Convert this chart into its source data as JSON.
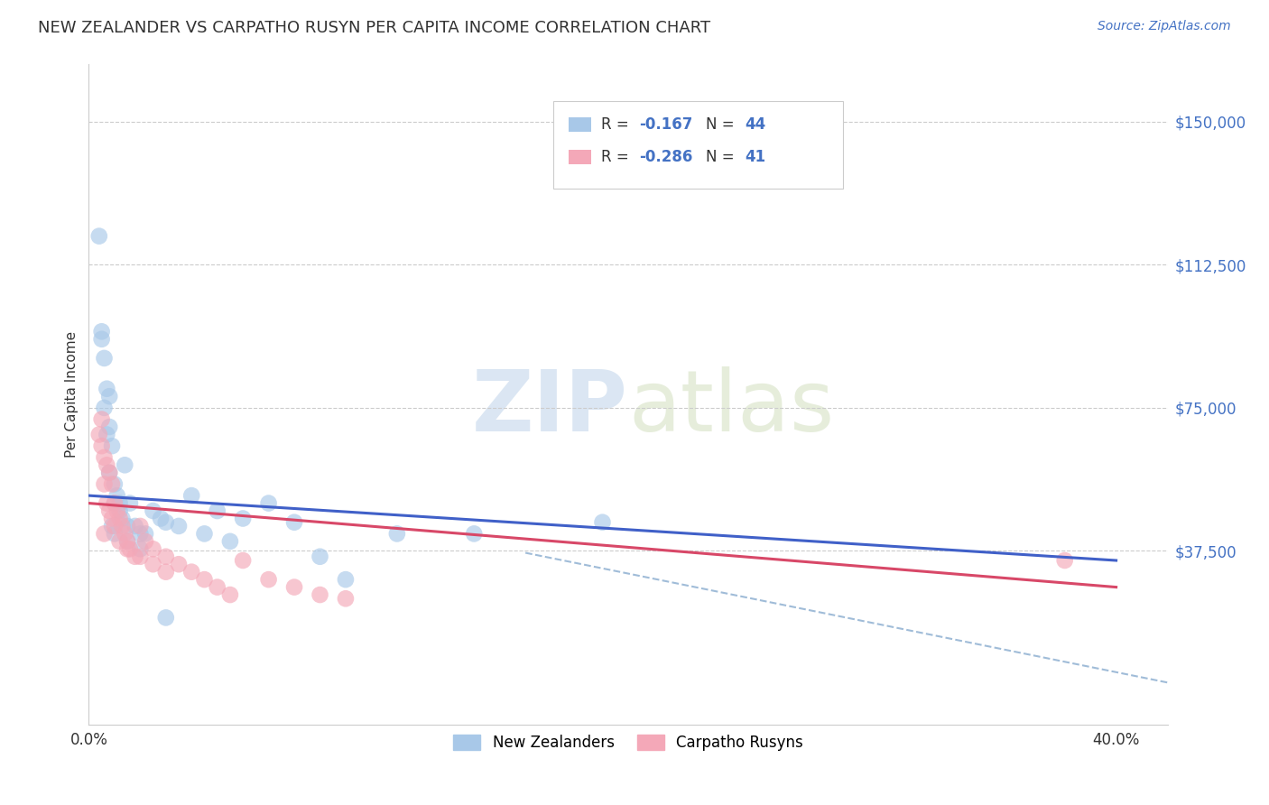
{
  "title": "NEW ZEALANDER VS CARPATHO RUSYN PER CAPITA INCOME CORRELATION CHART",
  "source": "Source: ZipAtlas.com",
  "ylabel": "Per Capita Income",
  "xlim": [
    0.0,
    0.42
  ],
  "ylim": [
    -8000,
    165000
  ],
  "yticks": [
    0,
    37500,
    75000,
    112500,
    150000
  ],
  "ytick_labels": [
    "",
    "$37,500",
    "$75,000",
    "$112,500",
    "$150,000"
  ],
  "xticks": [
    0.0,
    0.1,
    0.2,
    0.3,
    0.4
  ],
  "xtick_labels": [
    "0.0%",
    "",
    "",
    "",
    "40.0%"
  ],
  "watermark_zip": "ZIP",
  "watermark_atlas": "atlas",
  "legend_label1": "New Zealanders",
  "legend_label2": "Carpatho Rusyns",
  "color_nz": "#a8c8e8",
  "color_cr": "#f4a8b8",
  "color_nz_line": "#4060c8",
  "color_cr_line": "#d84868",
  "color_dashed": "#a0bcd8",
  "nz_x": [
    0.004,
    0.005,
    0.006,
    0.007,
    0.008,
    0.008,
    0.009,
    0.01,
    0.01,
    0.011,
    0.012,
    0.013,
    0.014,
    0.015,
    0.016,
    0.018,
    0.02,
    0.022,
    0.025,
    0.028,
    0.03,
    0.035,
    0.04,
    0.045,
    0.05,
    0.055,
    0.06,
    0.07,
    0.08,
    0.09,
    0.1,
    0.12,
    0.15,
    0.2,
    0.005,
    0.006,
    0.007,
    0.008,
    0.009,
    0.01,
    0.012,
    0.015,
    0.02,
    0.03
  ],
  "nz_y": [
    120000,
    93000,
    88000,
    80000,
    78000,
    70000,
    65000,
    55000,
    50000,
    52000,
    48000,
    46000,
    60000,
    44000,
    50000,
    44000,
    42000,
    42000,
    48000,
    46000,
    45000,
    44000,
    52000,
    42000,
    48000,
    40000,
    46000,
    50000,
    45000,
    36000,
    30000,
    42000,
    42000,
    45000,
    95000,
    75000,
    68000,
    58000,
    44000,
    42000,
    50000,
    40000,
    38000,
    20000
  ],
  "cr_x": [
    0.004,
    0.005,
    0.006,
    0.007,
    0.008,
    0.009,
    0.01,
    0.011,
    0.012,
    0.013,
    0.014,
    0.015,
    0.016,
    0.018,
    0.02,
    0.022,
    0.025,
    0.03,
    0.035,
    0.04,
    0.045,
    0.05,
    0.055,
    0.06,
    0.07,
    0.08,
    0.09,
    0.1,
    0.005,
    0.006,
    0.007,
    0.008,
    0.009,
    0.01,
    0.012,
    0.015,
    0.02,
    0.025,
    0.03,
    0.38,
    0.006
  ],
  "cr_y": [
    68000,
    65000,
    62000,
    60000,
    58000,
    55000,
    50000,
    48000,
    46000,
    44000,
    42000,
    40000,
    38000,
    36000,
    44000,
    40000,
    38000,
    36000,
    34000,
    32000,
    30000,
    28000,
    26000,
    35000,
    30000,
    28000,
    26000,
    25000,
    72000,
    55000,
    50000,
    48000,
    46000,
    44000,
    40000,
    38000,
    36000,
    34000,
    32000,
    35000,
    42000
  ],
  "nz_line_x": [
    0.0,
    0.4
  ],
  "nz_line_y": [
    52000,
    35000
  ],
  "cr_line_x": [
    0.0,
    0.4
  ],
  "cr_line_y": [
    50000,
    28000
  ],
  "dash_line_x": [
    0.17,
    0.42
  ],
  "dash_line_y": [
    37000,
    3000
  ]
}
